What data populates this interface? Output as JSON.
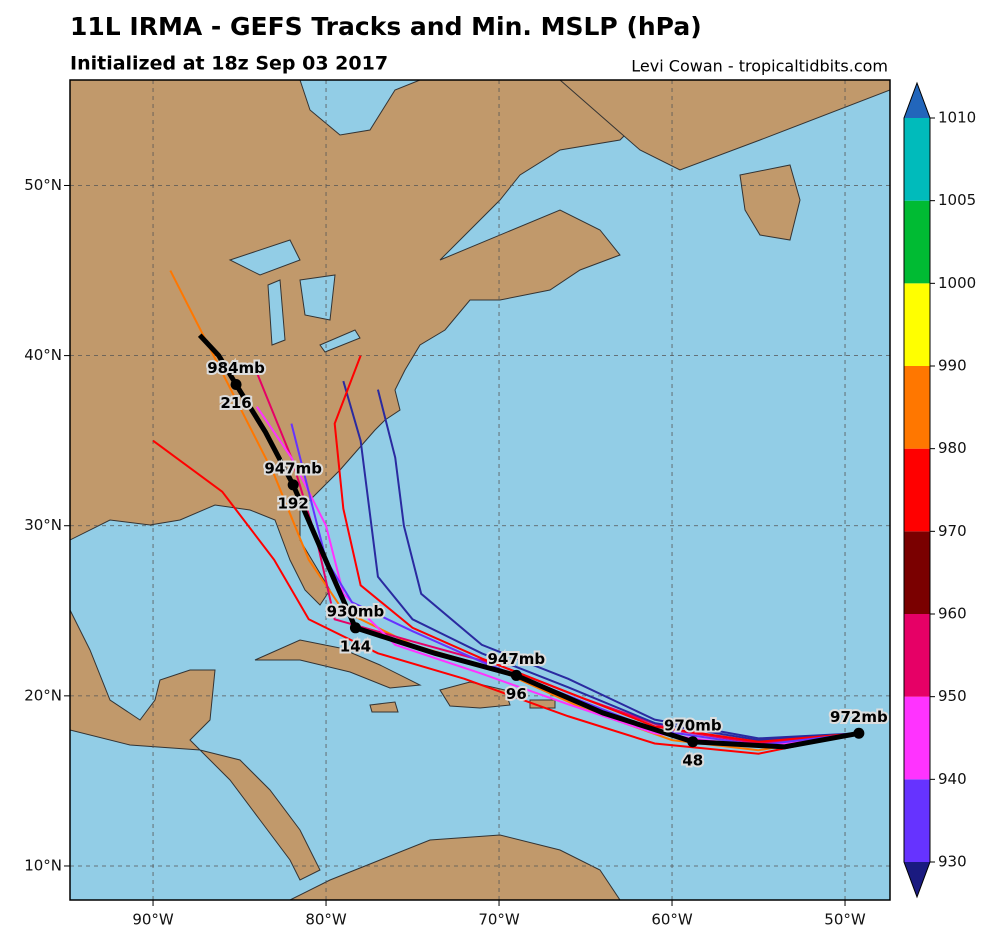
{
  "title": "11L IRMA - GEFS Tracks and Min. MSLP (hPa)",
  "subtitle": "Initialized at 18z Sep 03 2017",
  "credit": "Levi Cowan - tropicaltidbits.com",
  "map": {
    "xlim": [
      -94.8,
      -47.4
    ],
    "ylim": [
      8,
      56.2
    ],
    "xticks": [
      {
        "value": -90,
        "label": "90°W"
      },
      {
        "value": -80,
        "label": "80°W"
      },
      {
        "value": -70,
        "label": "70°W"
      },
      {
        "value": -60,
        "label": "60°W"
      },
      {
        "value": -50,
        "label": "50°W"
      }
    ],
    "yticks": [
      {
        "value": 10,
        "label": "10°N"
      },
      {
        "value": 20,
        "label": "20°N"
      },
      {
        "value": 30,
        "label": "30°N"
      },
      {
        "value": 40,
        "label": "40°N"
      },
      {
        "value": 50,
        "label": "50°N"
      }
    ],
    "mean_track": {
      "lon": [
        -49.2,
        -53.5,
        -58.8,
        -64,
        -69,
        -73.7,
        -78.3,
        -79.6,
        -81.9,
        -83.5,
        -85.2,
        -86.2,
        -87.3
      ],
      "lat": [
        17.8,
        17,
        17.3,
        19,
        21.2,
        22.5,
        24,
        27,
        32.4,
        35.5,
        38.3,
        40,
        41.2
      ],
      "color": "#000000"
    },
    "points": [
      {
        "lon": -49.2,
        "lat": 17.8,
        "pressure": "972mb"
      },
      {
        "lon": -58.8,
        "lat": 17.3,
        "pressure": "970mb",
        "hour": 48
      },
      {
        "lon": -69,
        "lat": 21.2,
        "pressure": "947mb",
        "hour": 96
      },
      {
        "lon": -78.3,
        "lat": 24,
        "pressure": "930mb",
        "hour": 144
      },
      {
        "lon": -81.9,
        "lat": 32.4,
        "pressure": "947mb",
        "hour": 192
      },
      {
        "lon": -85.2,
        "lat": 38.3,
        "pressure": "984mb",
        "hour": 216
      }
    ],
    "ensemble_tracks": [
      {
        "color": "#ff7700",
        "lon": [
          -49.2,
          -55,
          -60,
          -65,
          -70,
          -75,
          -79,
          -81,
          -83,
          -86,
          -89
        ],
        "lat": [
          17.8,
          16.8,
          17.4,
          19.2,
          21.5,
          23,
          25,
          28,
          33,
          39,
          45
        ]
      },
      {
        "color": "#e60066",
        "lon": [
          -49.2,
          -55,
          -60,
          -65,
          -70,
          -75,
          -79.5,
          -80.5,
          -82,
          -84
        ],
        "lat": [
          17.8,
          17.2,
          18,
          19.8,
          21.8,
          23.2,
          24.5,
          29,
          34,
          39
        ]
      },
      {
        "color": "#2a2aa0",
        "lon": [
          -49.2,
          -55,
          -61,
          -66,
          -71,
          -75,
          -77,
          -77.5,
          -78,
          -79
        ],
        "lat": [
          17.8,
          17.4,
          18.4,
          20.5,
          22.5,
          24.5,
          27,
          31,
          35,
          38.5
        ]
      },
      {
        "color": "#2a2aa0",
        "lon": [
          -49.2,
          -55,
          -61,
          -66,
          -71,
          -74.5,
          -75.5,
          -76,
          -77
        ],
        "lat": [
          17.8,
          17.5,
          18.6,
          21,
          23,
          26,
          30,
          34,
          38
        ]
      },
      {
        "color": "#ff33ff",
        "lon": [
          -49.2,
          -55,
          -61,
          -66,
          -71,
          -76,
          -79,
          -80,
          -82,
          -84
        ],
        "lat": [
          17.8,
          17,
          17.8,
          19.5,
          21.3,
          23,
          26,
          30,
          34,
          37
        ]
      },
      {
        "color": "#ff0000",
        "lon": [
          -49.2,
          -55,
          -61,
          -66,
          -72,
          -77,
          -81,
          -83,
          -86,
          -90
        ],
        "lat": [
          17.8,
          16.6,
          17.2,
          18.8,
          21,
          22.5,
          24.5,
          28,
          32,
          35
        ]
      },
      {
        "color": "#ff0000",
        "lon": [
          -49.2,
          -55,
          -61,
          -66,
          -71,
          -75,
          -78,
          -79,
          -79.5,
          -78
        ],
        "lat": [
          17.8,
          17.3,
          18.2,
          20.2,
          22.2,
          24,
          26.5,
          31,
          36,
          40
        ]
      },
      {
        "color": "#6633ff",
        "lon": [
          -49.2,
          -55,
          -61,
          -66,
          -71,
          -75,
          -78.5,
          -80,
          -81,
          -82
        ],
        "lat": [
          17.8,
          17.1,
          18,
          20,
          22,
          23.8,
          25.5,
          28,
          32,
          36
        ]
      }
    ],
    "colorbar": {
      "ticks": [
        930,
        940,
        950,
        960,
        970,
        980,
        990,
        1000,
        1005,
        1010
      ],
      "colors": [
        "#6633ff",
        "#ff33ff",
        "#e60066",
        "#7a0000",
        "#ff0000",
        "#ff7700",
        "#ffff00",
        "#00bb33",
        "#00bbbb"
      ],
      "under_color": "#1a1a80",
      "over_color": "#2266bb"
    }
  }
}
